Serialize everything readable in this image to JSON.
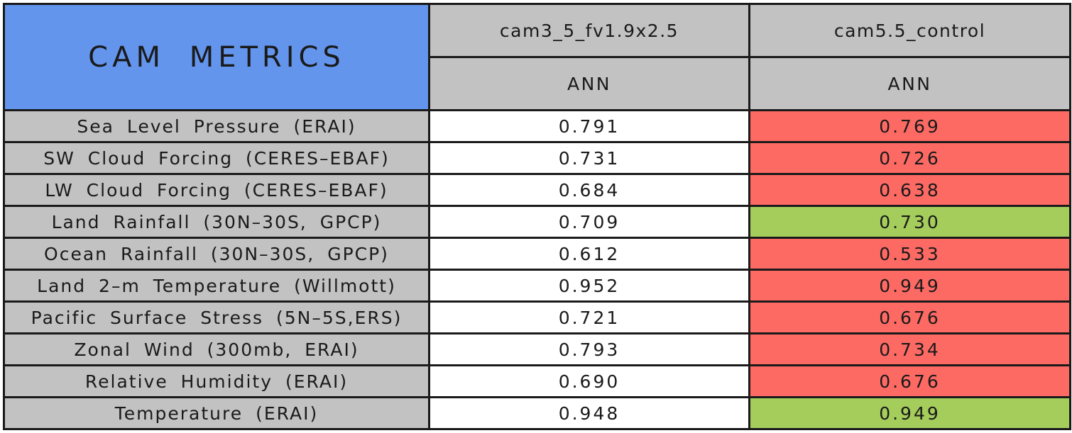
{
  "table": {
    "title": "CAM METRICS",
    "column_groups": [
      {
        "model": "cam3_5_fv1.9x2.5",
        "season": "ANN"
      },
      {
        "model": "cam5.5_control",
        "season": "ANN"
      }
    ],
    "rows": [
      {
        "metric": "Sea Level Pressure (ERAI)",
        "values": [
          {
            "text": "0.791",
            "bg": "white"
          },
          {
            "text": "0.769",
            "bg": "red"
          }
        ]
      },
      {
        "metric": "SW Cloud Forcing (CERES–EBAF)",
        "values": [
          {
            "text": "0.731",
            "bg": "white"
          },
          {
            "text": "0.726",
            "bg": "red"
          }
        ]
      },
      {
        "metric": "LW Cloud Forcing (CERES–EBAF)",
        "values": [
          {
            "text": "0.684",
            "bg": "white"
          },
          {
            "text": "0.638",
            "bg": "red"
          }
        ]
      },
      {
        "metric": "Land Rainfall (30N–30S, GPCP)",
        "values": [
          {
            "text": "0.709",
            "bg": "white"
          },
          {
            "text": "0.730",
            "bg": "green"
          }
        ]
      },
      {
        "metric": "Ocean Rainfall (30N–30S, GPCP)",
        "values": [
          {
            "text": "0.612",
            "bg": "white"
          },
          {
            "text": "0.533",
            "bg": "red"
          }
        ]
      },
      {
        "metric": "Land 2–m Temperature (Willmott)",
        "values": [
          {
            "text": "0.952",
            "bg": "white"
          },
          {
            "text": "0.949",
            "bg": "red"
          }
        ]
      },
      {
        "metric": "Pacific Surface Stress (5N–5S,ERS)",
        "values": [
          {
            "text": "0.721",
            "bg": "white"
          },
          {
            "text": "0.676",
            "bg": "red"
          }
        ]
      },
      {
        "metric": "Zonal Wind (300mb, ERAI)",
        "values": [
          {
            "text": "0.793",
            "bg": "white"
          },
          {
            "text": "0.734",
            "bg": "red"
          }
        ]
      },
      {
        "metric": "Relative Humidity (ERAI)",
        "values": [
          {
            "text": "0.690",
            "bg": "white"
          },
          {
            "text": "0.676",
            "bg": "red"
          }
        ]
      },
      {
        "metric": "Temperature (ERAI)",
        "values": [
          {
            "text": "0.948",
            "bg": "white"
          },
          {
            "text": "0.949",
            "bg": "green"
          }
        ]
      }
    ],
    "colors": {
      "blue": "#6495ED",
      "gray": "#C2C2C2",
      "red": "#FD6A64",
      "green": "#A5CD5C",
      "white": "#FFFFFF",
      "line": "#1A1A1A"
    }
  },
  "chart_data": {
    "type": "table",
    "title": "CAM METRICS",
    "row_labels": [
      "Sea Level Pressure (ERAI)",
      "SW Cloud Forcing (CERES–EBAF)",
      "LW Cloud Forcing (CERES–EBAF)",
      "Land Rainfall (30N–30S, GPCP)",
      "Ocean Rainfall (30N–30S, GPCP)",
      "Land 2–m Temperature (Willmott)",
      "Pacific Surface Stress (5N–5S,ERS)",
      "Zonal Wind (300mb, ERAI)",
      "Relative Humidity (ERAI)",
      "Temperature (ERAI)"
    ],
    "series": [
      {
        "name": "cam3_5_fv1.9x2.5",
        "season": "ANN",
        "values": [
          0.791,
          0.731,
          0.684,
          0.709,
          0.612,
          0.952,
          0.721,
          0.793,
          0.69,
          0.948
        ],
        "cell_colors": [
          "white",
          "white",
          "white",
          "white",
          "white",
          "white",
          "white",
          "white",
          "white",
          "white"
        ]
      },
      {
        "name": "cam5.5_control",
        "season": "ANN",
        "values": [
          0.769,
          0.726,
          0.638,
          0.73,
          0.533,
          0.949,
          0.676,
          0.734,
          0.676,
          0.949
        ],
        "cell_colors": [
          "red",
          "red",
          "red",
          "green",
          "red",
          "red",
          "red",
          "red",
          "red",
          "green"
        ]
      }
    ],
    "cell_color_hex": {
      "red": "#FD6A64",
      "green": "#A5CD5C",
      "white": "#FFFFFF"
    }
  }
}
